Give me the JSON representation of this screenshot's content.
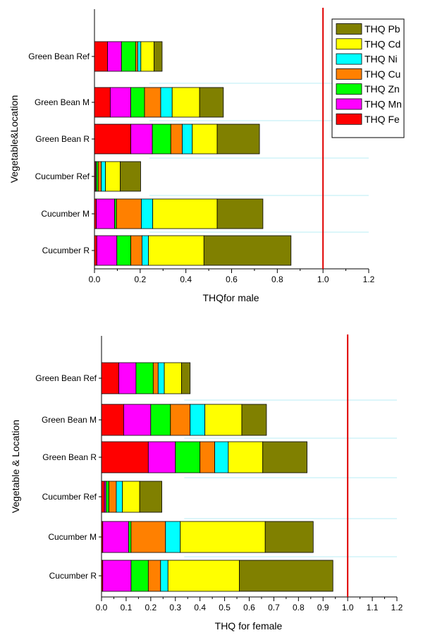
{
  "chart_data": [
    {
      "type": "bar",
      "orientation": "horizontal",
      "stacked": true,
      "title": "",
      "xlabel": "THQfor male",
      "ylabel": "Vegetable&Location",
      "xlim": [
        0,
        1.2
      ],
      "x_ticks": [
        "0.0",
        "0.2",
        "0.4",
        "0.6",
        "0.8",
        "1.0",
        "1.2"
      ],
      "reference_line": 1.0,
      "legend_position": "top-right",
      "categories": [
        "Green Bean Ref",
        "Green Bean M",
        "Green Bean R",
        "Cucumber Ref",
        "Cucumber M",
        "Cucumber R"
      ],
      "series": [
        {
          "name": "THQ Fe",
          "color": "#ff0000",
          "values": [
            0.057,
            0.069,
            0.159,
            0.004,
            0.008,
            0.01
          ]
        },
        {
          "name": "THQ Mn",
          "color": "#ff00ff",
          "values": [
            0.061,
            0.09,
            0.094,
            0.004,
            0.08,
            0.088
          ]
        },
        {
          "name": "THQ Zn",
          "color": "#00ff00",
          "values": [
            0.062,
            0.06,
            0.081,
            0.008,
            0.008,
            0.061
          ]
        },
        {
          "name": "THQ Cu",
          "color": "#ff8000",
          "values": [
            0.009,
            0.071,
            0.05,
            0.014,
            0.109,
            0.049
          ]
        },
        {
          "name": "THQ Ni",
          "color": "#00ffff",
          "values": [
            0.014,
            0.05,
            0.044,
            0.018,
            0.05,
            0.028
          ]
        },
        {
          "name": "THQ Cd",
          "color": "#ffff00",
          "values": [
            0.058,
            0.12,
            0.109,
            0.065,
            0.282,
            0.243
          ]
        },
        {
          "name": "THQ Pb",
          "color": "#808000",
          "values": [
            0.035,
            0.104,
            0.185,
            0.089,
            0.2,
            0.381
          ]
        }
      ]
    },
    {
      "type": "bar",
      "orientation": "horizontal",
      "stacked": true,
      "title": "",
      "xlabel": "THQ for female",
      "ylabel": "Vegetable & Location",
      "xlim": [
        0,
        1.2
      ],
      "x_ticks": [
        "0.0",
        "0.1",
        "0.2",
        "0.3",
        "0.4",
        "0.5",
        "0.6",
        "0.7",
        "0.8",
        "0.9",
        "1.0",
        "1.1",
        "1.2"
      ],
      "reference_line": 1.0,
      "categories": [
        "Green Bean Ref",
        "Green Bean M",
        "Green Bean R",
        "Cucumber Ref",
        "Cucumber M",
        "Cucumber R"
      ],
      "series": [
        {
          "name": "THQ Fe",
          "color": "#ff0000",
          "values": [
            0.07,
            0.09,
            0.19,
            0.012,
            0.005,
            0.005
          ]
        },
        {
          "name": "THQ Mn",
          "color": "#ff00ff",
          "values": [
            0.07,
            0.11,
            0.11,
            0.006,
            0.105,
            0.115
          ]
        },
        {
          "name": "THQ Zn",
          "color": "#00ff00",
          "values": [
            0.07,
            0.08,
            0.1,
            0.012,
            0.01,
            0.07
          ]
        },
        {
          "name": "THQ Cu",
          "color": "#ff8000",
          "values": [
            0.02,
            0.08,
            0.06,
            0.03,
            0.14,
            0.05
          ]
        },
        {
          "name": "THQ Ni",
          "color": "#00ffff",
          "values": [
            0.025,
            0.06,
            0.055,
            0.025,
            0.06,
            0.03
          ]
        },
        {
          "name": "THQ Cd",
          "color": "#ffff00",
          "values": [
            0.07,
            0.15,
            0.14,
            0.07,
            0.345,
            0.29
          ]
        },
        {
          "name": "THQ Pb",
          "color": "#808000",
          "values": [
            0.035,
            0.1,
            0.18,
            0.09,
            0.195,
            0.38
          ]
        }
      ]
    }
  ]
}
